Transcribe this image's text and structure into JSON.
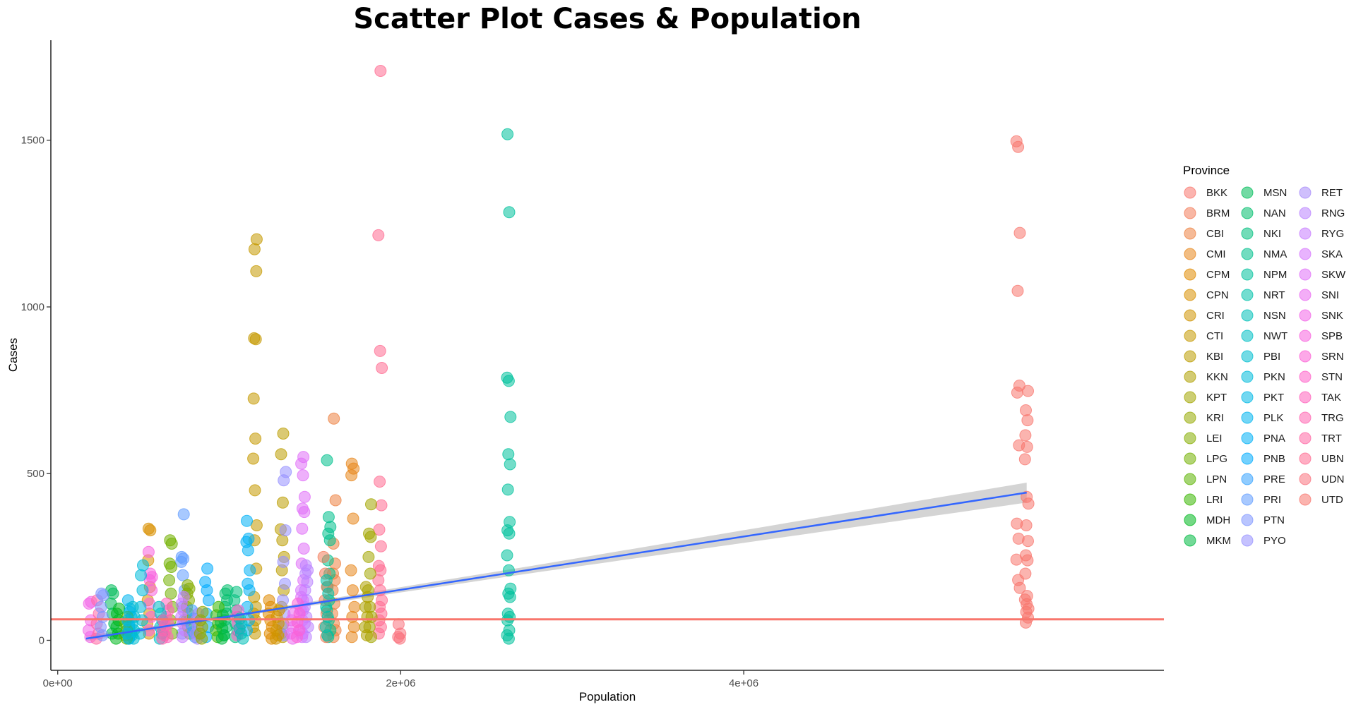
{
  "chart_data": {
    "type": "scatter",
    "title": "Scatter Plot Cases & Population",
    "xlabel": "Population",
    "ylabel": "Cases",
    "xlim": [
      -40000,
      6450000
    ],
    "ylim": [
      -90,
      1800
    ],
    "x_ticks": [
      {
        "value": 0,
        "label": "0e+00"
      },
      {
        "value": 2000000,
        "label": "2e+06"
      },
      {
        "value": 4000000,
        "label": "4e+06"
      }
    ],
    "y_ticks": [
      {
        "value": 0,
        "label": "0"
      },
      {
        "value": 500,
        "label": "500"
      },
      {
        "value": 1000,
        "label": "1000"
      },
      {
        "value": 1500,
        "label": "1500"
      }
    ],
    "grid": false,
    "legend": {
      "title": "Province",
      "placement": "right",
      "entries": [
        {
          "name": "BKK",
          "color": "#F8766D"
        },
        {
          "name": "BRM",
          "color": "#F37B59"
        },
        {
          "name": "CBI",
          "color": "#ED8141"
        },
        {
          "name": "CMI",
          "color": "#E7861B"
        },
        {
          "name": "CPM",
          "color": "#E08B00"
        },
        {
          "name": "CPN",
          "color": "#D89000"
        },
        {
          "name": "CRI",
          "color": "#CF9400"
        },
        {
          "name": "CTI",
          "color": "#C59900"
        },
        {
          "name": "KBI",
          "color": "#BB9D00"
        },
        {
          "name": "KKN",
          "color": "#AFA100"
        },
        {
          "name": "KPT",
          "color": "#A3A500"
        },
        {
          "name": "KRI",
          "color": "#95A900"
        },
        {
          "name": "LEI",
          "color": "#85AD00"
        },
        {
          "name": "LPG",
          "color": "#72B000"
        },
        {
          "name": "LPN",
          "color": "#5BB300"
        },
        {
          "name": "LRI",
          "color": "#39B600"
        },
        {
          "name": "MDH",
          "color": "#00B81F"
        },
        {
          "name": "MKM",
          "color": "#00BA42"
        },
        {
          "name": "MSN",
          "color": "#00BC59"
        },
        {
          "name": "NAN",
          "color": "#00BE6C"
        },
        {
          "name": "NKI",
          "color": "#00BF7D"
        },
        {
          "name": "NMA",
          "color": "#00C08D"
        },
        {
          "name": "NPM",
          "color": "#00C19C"
        },
        {
          "name": "NRT",
          "color": "#00C1AA"
        },
        {
          "name": "NSN",
          "color": "#00C0B8"
        },
        {
          "name": "NWT",
          "color": "#00BFC4"
        },
        {
          "name": "PBI",
          "color": "#00BDD0"
        },
        {
          "name": "PKN",
          "color": "#00BBDB"
        },
        {
          "name": "PKT",
          "color": "#00B8E5"
        },
        {
          "name": "PLK",
          "color": "#00B4EF"
        },
        {
          "name": "PNA",
          "color": "#00B0F6"
        },
        {
          "name": "PNB",
          "color": "#00ABFD"
        },
        {
          "name": "PRE",
          "color": "#35A2FF"
        },
        {
          "name": "PRI",
          "color": "#619CFF"
        },
        {
          "name": "PTN",
          "color": "#7F96FF"
        },
        {
          "name": "PYO",
          "color": "#9590FF"
        },
        {
          "name": "RET",
          "color": "#A78BFA"
        },
        {
          "name": "RNG",
          "color": "#B983FF"
        },
        {
          "name": "RYG",
          "color": "#C77CFF"
        },
        {
          "name": "SKA",
          "color": "#D575FE"
        },
        {
          "name": "SKW",
          "color": "#E06FF8"
        },
        {
          "name": "SNI",
          "color": "#EA6AF1"
        },
        {
          "name": "SNK",
          "color": "#F265E7"
        },
        {
          "name": "SPB",
          "color": "#F863DE"
        },
        {
          "name": "SRN",
          "color": "#FC61D5"
        },
        {
          "name": "STN",
          "color": "#FF61C9"
        },
        {
          "name": "TAK",
          "color": "#FF62BC"
        },
        {
          "name": "TRG",
          "color": "#FF64B0"
        },
        {
          "name": "TRT",
          "color": "#FF67A4"
        },
        {
          "name": "UBN",
          "color": "#FF6C91"
        },
        {
          "name": "UDN",
          "color": "#FA727E"
        },
        {
          "name": "UTD",
          "color": "#F8766D"
        }
      ]
    },
    "hline": {
      "y": 63,
      "color": "#F8766D"
    },
    "trend": {
      "method": "linear fit with confidence band",
      "line_color": "#3366FF",
      "band_color": "#CCCCCC",
      "points": [
        {
          "x": 165000,
          "y": 5
        },
        {
          "x": 5650000,
          "y": 443
        }
      ],
      "band_halfwidth": [
        {
          "x": 165000,
          "w": 8
        },
        {
          "x": 1200000,
          "w": 5
        },
        {
          "x": 2800000,
          "w": 11
        },
        {
          "x": 5650000,
          "w": 30
        }
      ]
    },
    "series": [
      {
        "name": "BKK",
        "x": 5600000,
        "y": [
          1497,
          1480,
          1222,
          1048,
          764,
          743,
          585,
          350,
          305,
          242,
          181,
          157
        ]
      },
      {
        "name": "UTD",
        "x": 5650000,
        "y": [
          748,
          690,
          660,
          615,
          580,
          543,
          430,
          410,
          345,
          298,
          255,
          240,
          200,
          133,
          122,
          108,
          95,
          85,
          68,
          53
        ]
      },
      {
        "name": "UBN",
        "x": 1880000,
        "y": [
          1708,
          1215,
          868,
          817,
          476,
          405,
          332,
          282,
          223,
          210,
          180,
          150,
          120,
          100,
          80,
          60,
          40,
          20
        ]
      },
      {
        "name": "UDN",
        "x": 1990000,
        "y": [
          48,
          20,
          10,
          5
        ]
      },
      {
        "name": "NPM",
        "x": 2630000,
        "y": [
          1518,
          1284,
          788,
          778,
          670,
          558,
          528,
          452,
          355,
          330,
          320,
          255,
          210,
          155,
          140,
          130,
          80,
          70,
          60,
          30,
          15,
          5
        ]
      },
      {
        "name": "CTI",
        "x": 1150000,
        "y": [
          1203,
          1173,
          1107,
          906,
          903,
          725,
          605,
          545,
          450,
          345,
          300,
          215,
          130,
          100,
          80,
          60,
          40,
          20
        ]
      },
      {
        "name": "KBI",
        "x": 1310000,
        "y": [
          620,
          558,
          413,
          333,
          300,
          250,
          210,
          150,
          100,
          50,
          20,
          10
        ]
      },
      {
        "name": "CBI",
        "x": 1610000,
        "y": [
          665,
          420,
          290,
          230,
          200,
          180,
          150,
          110,
          80,
          50,
          30,
          10
        ]
      },
      {
        "name": "CMI",
        "x": 1720000,
        "y": [
          530,
          515,
          495,
          365,
          210,
          150,
          100,
          70,
          40,
          10
        ]
      },
      {
        "name": "NMA",
        "x": 1580000,
        "y": [
          540,
          370,
          340,
          320,
          300,
          240,
          200,
          160,
          120,
          90,
          60,
          30,
          10
        ]
      },
      {
        "name": "KPT",
        "x": 1820000,
        "y": [
          408,
          320,
          310,
          250,
          200,
          150,
          100,
          70,
          40,
          10
        ]
      },
      {
        "name": "SKW",
        "x": 1430000,
        "y": [
          550,
          530,
          495,
          430,
          395,
          385,
          335,
          275,
          230,
          180,
          130,
          90,
          50,
          20
        ]
      },
      {
        "name": "RNG",
        "x": 1450000,
        "y": [
          225,
          210,
          200,
          175,
          150,
          120,
          100,
          70,
          40,
          10
        ]
      },
      {
        "name": "PNA",
        "x": 1110000,
        "y": [
          358,
          305,
          295,
          270,
          210,
          170,
          150,
          100,
          60,
          30
        ]
      },
      {
        "name": "PYO",
        "x": 1320000,
        "y": [
          505,
          480,
          330,
          235,
          170,
          120,
          80,
          40,
          15
        ]
      },
      {
        "name": "PRI",
        "x": 730000,
        "y": [
          378,
          250,
          245,
          235,
          195,
          150,
          100,
          60,
          20
        ]
      },
      {
        "name": "CPN",
        "x": 530000,
        "y": [
          335,
          330,
          240,
          160,
          120,
          80,
          50,
          20
        ]
      },
      {
        "name": "LPG",
        "x": 660000,
        "y": [
          300,
          290,
          230,
          220,
          180,
          140,
          100,
          60,
          20
        ]
      },
      {
        "name": "SPB",
        "x": 540000,
        "y": [
          265,
          200,
          190,
          180,
          150,
          110,
          70,
          30
        ]
      },
      {
        "name": "PKN",
        "x": 490000,
        "y": [
          225,
          195,
          150,
          100,
          60,
          20
        ]
      },
      {
        "name": "PNB",
        "x": 870000,
        "y": [
          215,
          175,
          150,
          120,
          80,
          40,
          10
        ]
      },
      {
        "name": "LEI",
        "x": 760000,
        "y": [
          165,
          155,
          140,
          120,
          100,
          80,
          60,
          40,
          20
        ]
      },
      {
        "name": "MSN",
        "x": 320000,
        "y": [
          150,
          140,
          110,
          80,
          50,
          20
        ]
      },
      {
        "name": "NAN",
        "x": 980000,
        "y": [
          150,
          140,
          120,
          100,
          80,
          60,
          40,
          15
        ]
      },
      {
        "name": "SNK",
        "x": 190000,
        "y": [
          115,
          110,
          60,
          30,
          10
        ]
      },
      {
        "name": "TRT",
        "x": 230000,
        "y": [
          120,
          80,
          50,
          20,
          5
        ]
      },
      {
        "name": "PTN",
        "x": 260000,
        "y": [
          140,
          135,
          100,
          70,
          40,
          15
        ]
      },
      {
        "name": "PLK",
        "x": 420000,
        "y": [
          120,
          95,
          70,
          45,
          20,
          5
        ]
      },
      {
        "name": "MDH",
        "x": 350000,
        "y": [
          95,
          80,
          60,
          40,
          20,
          5
        ]
      },
      {
        "name": "NKI",
        "x": 1040000,
        "y": [
          145,
          120,
          90,
          70,
          50,
          30,
          10
        ]
      },
      {
        "name": "KKN",
        "x": 1800000,
        "y": [
          160,
          130,
          100,
          70,
          40,
          15
        ]
      },
      {
        "name": "CPM",
        "x": 1240000,
        "y": [
          120,
          100,
          80,
          60,
          40,
          20,
          5
        ]
      },
      {
        "name": "CRI",
        "x": 1280000,
        "y": [
          90,
          70,
          50,
          30,
          15,
          5
        ]
      },
      {
        "name": "RYG",
        "x": 730000,
        "y": [
          130,
          110,
          90,
          70,
          50,
          30,
          10
        ]
      },
      {
        "name": "SKA",
        "x": 1420000,
        "y": [
          150,
          120,
          90,
          60,
          30,
          10
        ]
      },
      {
        "name": "TAK",
        "x": 640000,
        "y": [
          110,
          90,
          70,
          50,
          30,
          10
        ]
      },
      {
        "name": "NWT",
        "x": 600000,
        "y": [
          100,
          80,
          60,
          40,
          20,
          5
        ]
      },
      {
        "name": "LRI",
        "x": 930000,
        "y": [
          100,
          75,
          50,
          30,
          10
        ]
      },
      {
        "name": "STN",
        "x": 1050000,
        "y": [
          90,
          70,
          50,
          30,
          15
        ]
      },
      {
        "name": "PBI",
        "x": 440000,
        "y": [
          100,
          70,
          50,
          30,
          15,
          5
        ]
      },
      {
        "name": "PRE",
        "x": 790000,
        "y": [
          90,
          65,
          45,
          25,
          10
        ]
      },
      {
        "name": "RET",
        "x": 810000,
        "y": [
          80,
          60,
          40,
          20,
          5
        ]
      },
      {
        "name": "SNI",
        "x": 1370000,
        "y": [
          80,
          60,
          40,
          20,
          5
        ]
      },
      {
        "name": "SRN",
        "x": 1400000,
        "y": [
          110,
          80,
          55,
          30,
          10
        ]
      },
      {
        "name": "TRG",
        "x": 620000,
        "y": [
          60,
          45,
          30,
          15,
          5
        ]
      },
      {
        "name": "BRM",
        "x": 1560000,
        "y": [
          250,
          200,
          160,
          120,
          80,
          40,
          10
        ]
      },
      {
        "name": "LPN",
        "x": 400000,
        "y": [
          70,
          50,
          30,
          15,
          5
        ]
      },
      {
        "name": "MKM",
        "x": 960000,
        "y": [
          75,
          55,
          35,
          15,
          5
        ]
      },
      {
        "name": "NRT",
        "x": 1570000,
        "y": [
          180,
          140,
          100,
          70,
          40,
          15
        ]
      },
      {
        "name": "NSN",
        "x": 1070000,
        "y": [
          65,
          50,
          35,
          20,
          5
        ]
      },
      {
        "name": "PKT",
        "x": 410000,
        "y": [
          85,
          60,
          40,
          20,
          5
        ]
      },
      {
        "name": "KRI",
        "x": 840000,
        "y": [
          85,
          60,
          40,
          20,
          5
        ]
      }
    ]
  }
}
